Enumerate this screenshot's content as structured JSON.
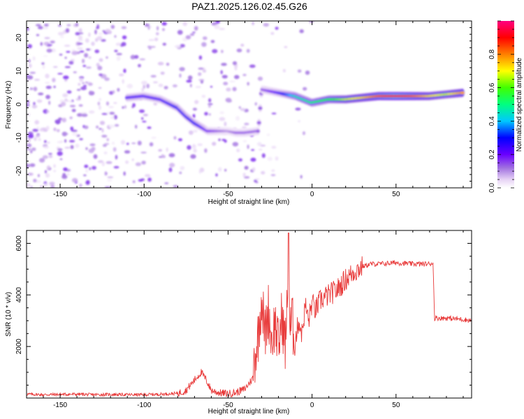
{
  "title": "PAZ1.2025.126.02.45.G26",
  "chart_data": [
    {
      "type": "heatmap",
      "xlabel": "Height of straight line (km)",
      "ylabel": "Frequency (Hz)",
      "xlim": [
        -170,
        95
      ],
      "ylim": [
        -25,
        25
      ],
      "xticks": [
        -150,
        -100,
        -50,
        0,
        50
      ],
      "yticks": [
        -20,
        -10,
        0,
        10,
        20
      ],
      "colorbar": {
        "label": "Normalized spectral amplitude",
        "range": [
          0,
          1
        ],
        "ticks": [
          0.0,
          0.2,
          0.4,
          0.6,
          0.8
        ],
        "colormap": [
          "#ffffff",
          "#e6d2f5",
          "#a070e0",
          "#6a00ff",
          "#0000ff",
          "#00c8ff",
          "#00ff80",
          "#40ff00",
          "#ffff00",
          "#ff8000",
          "#ff0000",
          "#ff0080"
        ]
      },
      "ridge": [
        {
          "x": -110,
          "freq": 2.0,
          "amp": 0.3
        },
        {
          "x": -100,
          "freq": 2.5,
          "amp": 0.3
        },
        {
          "x": -90,
          "freq": 1.5,
          "amp": 0.3
        },
        {
          "x": -80,
          "freq": -1.0,
          "amp": 0.35
        },
        {
          "x": -75,
          "freq": -3.5,
          "amp": 0.35
        },
        {
          "x": -70,
          "freq": -5.5,
          "amp": 0.35
        },
        {
          "x": -65,
          "freq": -7.0,
          "amp": 0.3
        },
        {
          "x": -62,
          "freq": -8.0,
          "amp": 0.25
        },
        {
          "x": -50,
          "freq": -8.0,
          "amp": 0.15
        },
        {
          "x": -45,
          "freq": -8.5,
          "amp": 0.2
        },
        {
          "x": -40,
          "freq": -8.5,
          "amp": 0.2
        },
        {
          "x": -32,
          "freq": -8.0,
          "amp": 0.2
        },
        {
          "x": -30,
          "freq": 4.5,
          "amp": 0.2
        },
        {
          "x": -20,
          "freq": 3.5,
          "amp": 0.3
        },
        {
          "x": -10,
          "freq": 2.5,
          "amp": 0.5
        },
        {
          "x": 0,
          "freq": 0.5,
          "amp": 0.55
        },
        {
          "x": 10,
          "freq": 1.5,
          "amp": 0.6
        },
        {
          "x": 20,
          "freq": 1.5,
          "amp": 0.7
        },
        {
          "x": 30,
          "freq": 2.0,
          "amp": 0.75
        },
        {
          "x": 40,
          "freq": 2.5,
          "amp": 0.85
        },
        {
          "x": 50,
          "freq": 2.5,
          "amp": 0.9
        },
        {
          "x": 60,
          "freq": 2.5,
          "amp": 0.85
        },
        {
          "x": 70,
          "freq": 2.5,
          "amp": 0.75
        },
        {
          "x": 80,
          "freq": 3.0,
          "amp": 0.7
        },
        {
          "x": 90,
          "freq": 3.5,
          "amp": 0.8
        }
      ]
    },
    {
      "type": "line",
      "xlabel": "Height of straight line (km)",
      "ylabel": "SNR (10 * v/v)",
      "xlim": [
        -170,
        95
      ],
      "ylim": [
        0,
        6500
      ],
      "xticks": [
        -150,
        -100,
        -50,
        0,
        50
      ],
      "yticks": [
        2000,
        4000,
        6000
      ],
      "color": "#e83a3a",
      "x": [
        -170,
        -160,
        -150,
        -140,
        -130,
        -120,
        -110,
        -100,
        -90,
        -80,
        -75,
        -70,
        -66,
        -63,
        -60,
        -55,
        -50,
        -45,
        -40,
        -35,
        -32,
        -30,
        -28,
        -26,
        -24,
        -22,
        -20,
        -18,
        -16,
        -14,
        -13,
        -12,
        -11,
        -10,
        -8,
        -6,
        -4,
        -2,
        0,
        2,
        5,
        10,
        15,
        20,
        25,
        30,
        35,
        40,
        50,
        60,
        70,
        72,
        73,
        80,
        90,
        95
      ],
      "y": [
        150,
        130,
        140,
        150,
        130,
        140,
        130,
        130,
        150,
        180,
        300,
        700,
        1000,
        700,
        300,
        200,
        170,
        220,
        350,
        800,
        2000,
        3500,
        2000,
        3000,
        1800,
        2500,
        1500,
        2800,
        1600,
        4000,
        2000,
        2800,
        2000,
        2200,
        3000,
        2500,
        3600,
        3000,
        3700,
        3400,
        3800,
        4000,
        4200,
        4600,
        4900,
        5100,
        5200,
        5200,
        5250,
        5200,
        5200,
        5250,
        3100,
        3100,
        3050,
        3000
      ]
    }
  ]
}
